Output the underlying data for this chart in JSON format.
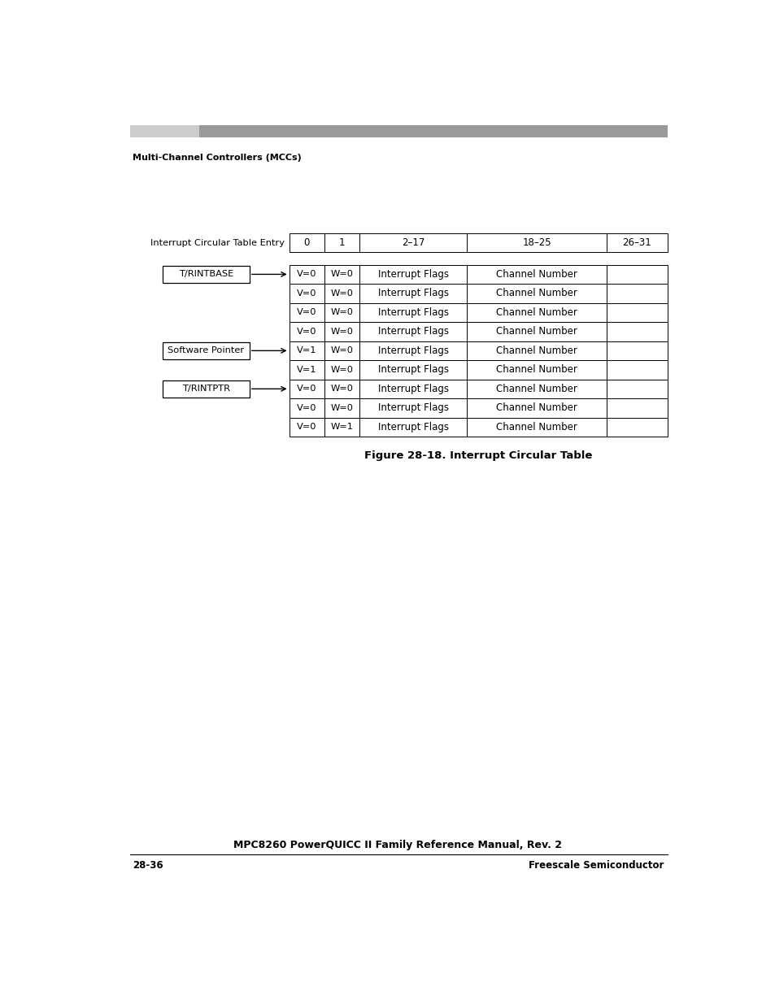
{
  "title": "Figure 28-18. Interrupt Circular Table",
  "header_label": "Interrupt Circular Table Entry",
  "header_cols": [
    "0",
    "1",
    "2–17",
    "18–25",
    "26–31"
  ],
  "rows": [
    {
      "v": "V=0",
      "w": "W=0",
      "flags": "Interrupt Flags",
      "channel": "Channel Number",
      "extra": ""
    },
    {
      "v": "V=0",
      "w": "W=0",
      "flags": "Interrupt Flags",
      "channel": "Channel Number",
      "extra": ""
    },
    {
      "v": "V=0",
      "w": "W=0",
      "flags": "Interrupt Flags",
      "channel": "Channel Number",
      "extra": ""
    },
    {
      "v": "V=0",
      "w": "W=0",
      "flags": "Interrupt Flags",
      "channel": "Channel Number",
      "extra": ""
    },
    {
      "v": "V=1",
      "w": "W=0",
      "flags": "Interrupt Flags",
      "channel": "Channel Number",
      "extra": ""
    },
    {
      "v": "V=1",
      "w": "W=0",
      "flags": "Interrupt Flags",
      "channel": "Channel Number",
      "extra": ""
    },
    {
      "v": "V=0",
      "w": "W=0",
      "flags": "Interrupt Flags",
      "channel": "Channel Number",
      "extra": ""
    },
    {
      "v": "V=0",
      "w": "W=0",
      "flags": "Interrupt Flags",
      "channel": "Channel Number",
      "extra": ""
    },
    {
      "v": "V=0",
      "w": "W=1",
      "flags": "Interrupt Flags",
      "channel": "Channel Number",
      "extra": ""
    }
  ],
  "label_info": [
    {
      "text": "T/RINTBASE",
      "row": 0
    },
    {
      "text": "Software Pointer",
      "row": 4
    },
    {
      "text": "T/RINTPTR",
      "row": 6
    }
  ],
  "header_section": "Multi-Channel Controllers (MCCs)",
  "footer_center": "MPC8260 PowerQUICC II Family Reference Manual, Rev. 2",
  "footer_left": "28-36",
  "footer_right": "Freescale Semiconductor"
}
